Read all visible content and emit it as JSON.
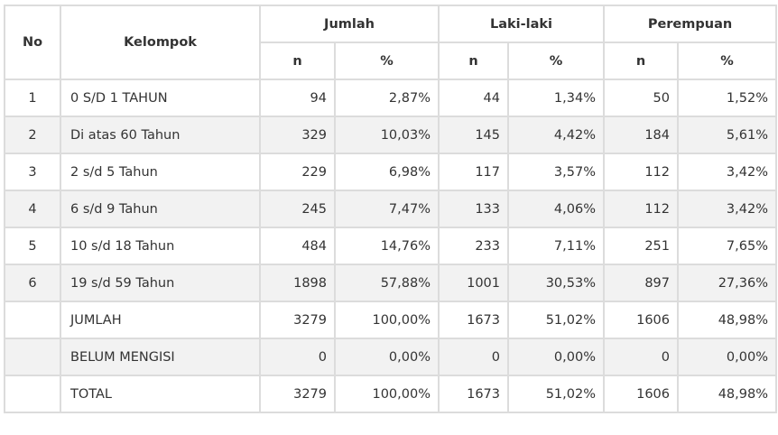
{
  "headers": {
    "no": "No",
    "kelompok": "Kelompok",
    "jumlah": "Jumlah",
    "laki": "Laki-laki",
    "perempuan": "Perempuan",
    "n": "n",
    "pct": "%"
  },
  "rows": [
    {
      "no": "1",
      "kelompok": "0 S/D 1 TAHUN",
      "jn": "94",
      "jp": "2,87%",
      "ln": "44",
      "lp": "1,34%",
      "pn": "50",
      "pp": "1,52%"
    },
    {
      "no": "2",
      "kelompok": "Di atas 60 Tahun",
      "jn": "329",
      "jp": "10,03%",
      "ln": "145",
      "lp": "4,42%",
      "pn": "184",
      "pp": "5,61%"
    },
    {
      "no": "3",
      "kelompok": "2 s/d 5 Tahun",
      "jn": "229",
      "jp": "6,98%",
      "ln": "117",
      "lp": "3,57%",
      "pn": "112",
      "pp": "3,42%"
    },
    {
      "no": "4",
      "kelompok": "6 s/d 9 Tahun",
      "jn": "245",
      "jp": "7,47%",
      "ln": "133",
      "lp": "4,06%",
      "pn": "112",
      "pp": "3,42%"
    },
    {
      "no": "5",
      "kelompok": "10 s/d 18 Tahun",
      "jn": "484",
      "jp": "14,76%",
      "ln": "233",
      "lp": "7,11%",
      "pn": "251",
      "pp": "7,65%"
    },
    {
      "no": "6",
      "kelompok": "19 s/d 59 Tahun",
      "jn": "1898",
      "jp": "57,88%",
      "ln": "1001",
      "lp": "30,53%",
      "pn": "897",
      "pp": "27,36%"
    },
    {
      "no": "",
      "kelompok": "JUMLAH",
      "jn": "3279",
      "jp": "100,00%",
      "ln": "1673",
      "lp": "51,02%",
      "pn": "1606",
      "pp": "48,98%"
    },
    {
      "no": "",
      "kelompok": "BELUM MENGISI",
      "jn": "0",
      "jp": "0,00%",
      "ln": "0",
      "lp": "0,00%",
      "pn": "0",
      "pp": "0,00%"
    },
    {
      "no": "",
      "kelompok": "TOTAL",
      "jn": "3279",
      "jp": "100,00%",
      "ln": "1673",
      "lp": "51,02%",
      "pn": "1606",
      "pp": "48,98%"
    }
  ]
}
